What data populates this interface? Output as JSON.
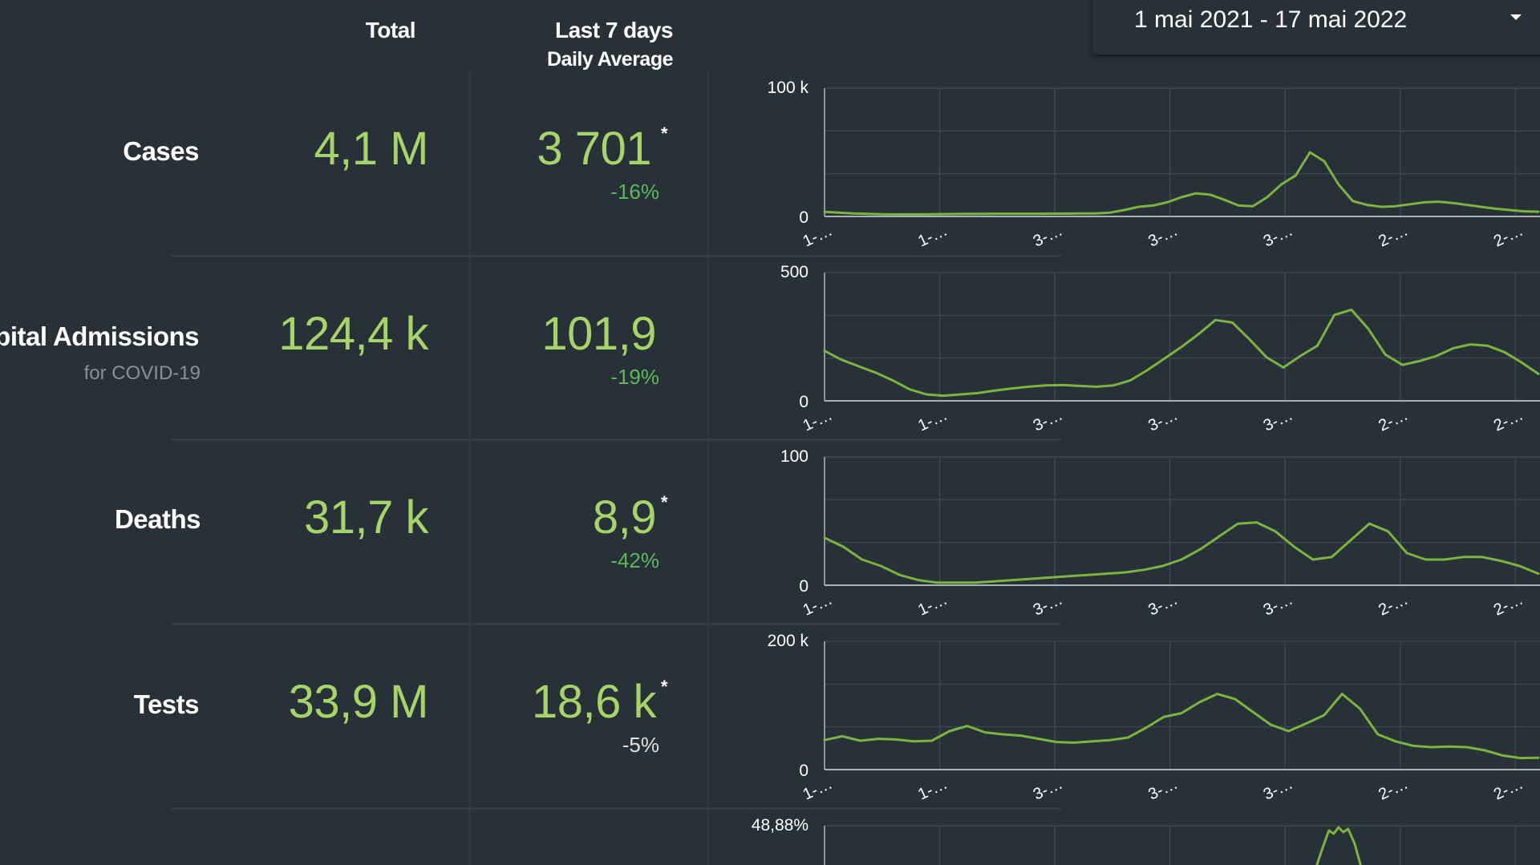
{
  "header": {
    "total_label": "Total",
    "last7_label": "Last 7 days",
    "daily_avg_label": "Daily Average"
  },
  "date_range": {
    "label": "1 mai 2021 - 17 mai 2022",
    "icon": "caret-down-icon"
  },
  "colors": {
    "background": "#283038",
    "accent_green": "#a6d46a",
    "line_green": "#7cb342",
    "pct_green": "#5cb85c",
    "grid": "#3d4650"
  },
  "rows": [
    {
      "label": "Cases",
      "sublabel": "",
      "total": "4,1 M",
      "avg": "3 701",
      "star": "*",
      "change": "-16%",
      "change_color": "#5cb85c"
    },
    {
      "label": "Hospital Admissions",
      "sublabel": "for COVID-19",
      "total": "124,4 k",
      "avg": "101,9",
      "star": "",
      "change": "-19%",
      "change_color": "#5cb85c"
    },
    {
      "label": "Deaths",
      "sublabel": "",
      "total": "31,7 k",
      "avg": "8,9",
      "star": "*",
      "change": "-42%",
      "change_color": "#5cb85c"
    },
    {
      "label": "Tests",
      "sublabel": "",
      "total": "33,9 M",
      "avg": "18,6 k",
      "star": "*",
      "change": "-5%",
      "change_color": "#e0e0e0"
    }
  ],
  "chart_data": [
    {
      "type": "line",
      "ylim": [
        0,
        100000
      ],
      "yticks": [
        "100 k",
        "0"
      ],
      "xticks": [
        "1-",
        "1-",
        "3-",
        "3-",
        "3-",
        "2-",
        "2-"
      ],
      "values": [
        3600,
        3000,
        2400,
        2000,
        1700,
        1600,
        1600,
        1600,
        1800,
        1900,
        2000,
        2000,
        2100,
        2100,
        2100,
        2100,
        2200,
        2200,
        2300,
        2400,
        3000,
        5000,
        7500,
        8500,
        11000,
        15000,
        18000,
        17000,
        13000,
        8500,
        8000,
        15000,
        25000,
        32000,
        50000,
        43000,
        25000,
        12000,
        9000,
        7500,
        8000,
        9500,
        11000,
        11500,
        10500,
        9000,
        7500,
        6000,
        5000,
        4000,
        3700
      ]
    },
    {
      "type": "line",
      "ylim": [
        0,
        500
      ],
      "yticks": [
        "500",
        "0"
      ],
      "xticks": [
        "1-",
        "1-",
        "3-",
        "3-",
        "3-",
        "2-",
        "2-"
      ],
      "values": [
        195,
        160,
        135,
        110,
        80,
        45,
        25,
        20,
        25,
        30,
        40,
        48,
        55,
        60,
        62,
        58,
        55,
        60,
        80,
        120,
        165,
        210,
        260,
        315,
        305,
        240,
        170,
        130,
        175,
        215,
        335,
        355,
        280,
        180,
        140,
        155,
        175,
        205,
        220,
        215,
        190,
        150,
        105
      ]
    },
    {
      "type": "line",
      "ylim": [
        0,
        100
      ],
      "yticks": [
        "100",
        "0"
      ],
      "xticks": [
        "1-",
        "1-",
        "3-",
        "3-",
        "3-",
        "2-",
        "2-"
      ],
      "values": [
        37,
        30,
        20,
        15,
        8,
        4,
        2,
        2,
        2,
        3,
        4,
        5,
        6,
        7,
        8,
        9,
        10,
        12,
        15,
        20,
        28,
        38,
        48,
        49,
        42,
        30,
        20,
        22,
        35,
        48,
        42,
        25,
        20,
        20,
        22,
        22,
        19,
        15,
        9
      ]
    },
    {
      "type": "line",
      "ylim": [
        0,
        200000
      ],
      "yticks": [
        "200 k",
        "0"
      ],
      "xticks": [
        "1-",
        "1-",
        "3-",
        "3-",
        "3-",
        "2-",
        "2-"
      ],
      "values": [
        46000,
        52000,
        45000,
        48000,
        47000,
        44000,
        45000,
        60000,
        68000,
        58000,
        55000,
        53000,
        48000,
        43000,
        42000,
        44000,
        46000,
        50000,
        65000,
        82000,
        88000,
        105000,
        118000,
        110000,
        90000,
        70000,
        60000,
        72000,
        85000,
        118000,
        95000,
        55000,
        44000,
        37000,
        35000,
        36000,
        35000,
        30000,
        22000,
        18000,
        18500
      ]
    },
    {
      "type": "line",
      "yticks": [
        "48,88%"
      ],
      "values": []
    }
  ]
}
